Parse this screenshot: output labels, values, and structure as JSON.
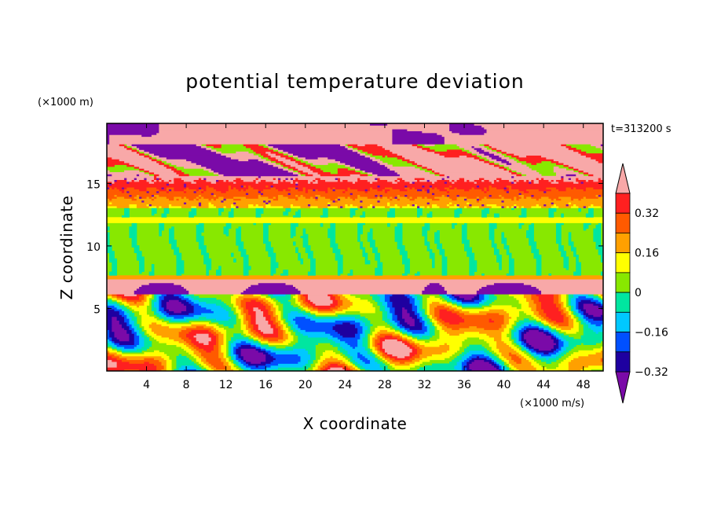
{
  "chart_data": {
    "type": "heatmap",
    "title": "potential temperature deviation",
    "xlabel": "X coordinate",
    "ylabel": "Z coordinate",
    "x_unit": "(×1000 m/s)",
    "y_unit": "(×1000 m)",
    "time_label": "t=313200 s",
    "xlim": [
      0,
      50
    ],
    "ylim": [
      0,
      19.8
    ],
    "x_ticks": [
      4,
      8,
      12,
      16,
      20,
      24,
      28,
      32,
      36,
      40,
      44,
      48
    ],
    "y_ticks": [
      5,
      10,
      15
    ],
    "colorbar": {
      "levels": [
        -0.4,
        -0.32,
        -0.24,
        -0.16,
        -0.08,
        0,
        0.08,
        0.16,
        0.24,
        0.32,
        0.4
      ],
      "labeled_ticks": [
        0.32,
        0.16,
        0,
        -0.16,
        -0.32
      ],
      "colors": [
        "#7a0aa8",
        "#1e00a0",
        "#0050ff",
        "#00c8ff",
        "#00e6a0",
        "#88e800",
        "#ffff00",
        "#ffa000",
        "#ff5a00",
        "#ff2020",
        "#f8a8a8"
      ],
      "extend": "both"
    },
    "layers": [
      {
        "z": [
          18.0,
          19.8
        ],
        "value": "pink with purple patches"
      },
      {
        "z": [
          15.5,
          18.0
        ],
        "value": "mixed purple/pink/green"
      },
      {
        "z": [
          13.0,
          15.5
        ],
        "value": "red/orange/yellow noisy"
      },
      {
        "z": [
          7.2,
          13.0
        ],
        "value": "green / cyan-green vertical streaks"
      },
      {
        "z": [
          6.0,
          7.2
        ],
        "value": "pink band with purple domes"
      },
      {
        "z": [
          0,
          6.0
        ],
        "value": "turbulent cells, all colors"
      }
    ]
  }
}
